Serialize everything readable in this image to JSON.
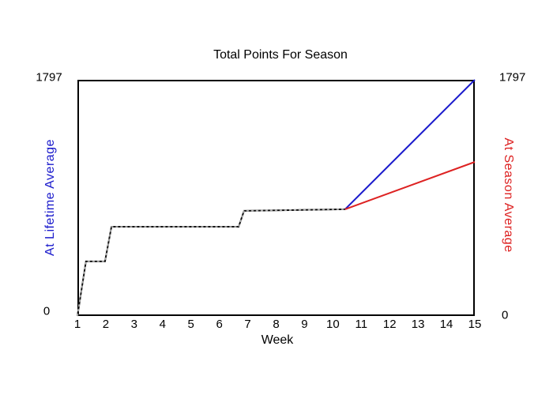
{
  "title": "Total Points For Season",
  "axes": {
    "x_label": "Week",
    "y_left_label": "At Lifetime Average",
    "y_right_label": "At Season Average",
    "y_left_max": "1797",
    "y_left_min": "0",
    "y_right_max": "1797",
    "y_right_min": "0"
  },
  "colors": {
    "lifetime_blue": "#1a1acc",
    "season_red": "#dd2222",
    "actual_black": "#111111",
    "dash_overlay": "#a8a8a8",
    "border": "#000000"
  },
  "chart_data": {
    "type": "line",
    "title": "Total Points For Season",
    "xlabel": "Week",
    "ylabel_left": "At Lifetime Average",
    "ylabel_right": "At Season Average",
    "xlim": [
      1,
      15
    ],
    "ylim": [
      0,
      1797
    ],
    "x_ticks": [
      "1",
      "2",
      "3",
      "4",
      "5",
      "6",
      "7",
      "8",
      "9",
      "10",
      "11",
      "12",
      "13",
      "14",
      "15"
    ],
    "y_tick_values": [
      0,
      1797
    ],
    "grid": false,
    "legend": "none",
    "series": [
      {
        "name": "actual-points",
        "color": "#111111",
        "dash_overlay": true,
        "points": [
          [
            1,
            0
          ],
          [
            1.3,
            415
          ],
          [
            1.97,
            415
          ],
          [
            2.2,
            679
          ],
          [
            6.68,
            679
          ],
          [
            6.87,
            800
          ],
          [
            10.43,
            812
          ]
        ]
      },
      {
        "name": "at-lifetime-average-projection",
        "color": "#1a1acc",
        "dash_overlay": false,
        "points": [
          [
            10.43,
            812
          ],
          [
            15,
            1797
          ]
        ]
      },
      {
        "name": "at-season-average-projection",
        "color": "#dd2222",
        "dash_overlay": false,
        "points": [
          [
            10.43,
            812
          ],
          [
            15,
            1172
          ]
        ]
      }
    ]
  }
}
